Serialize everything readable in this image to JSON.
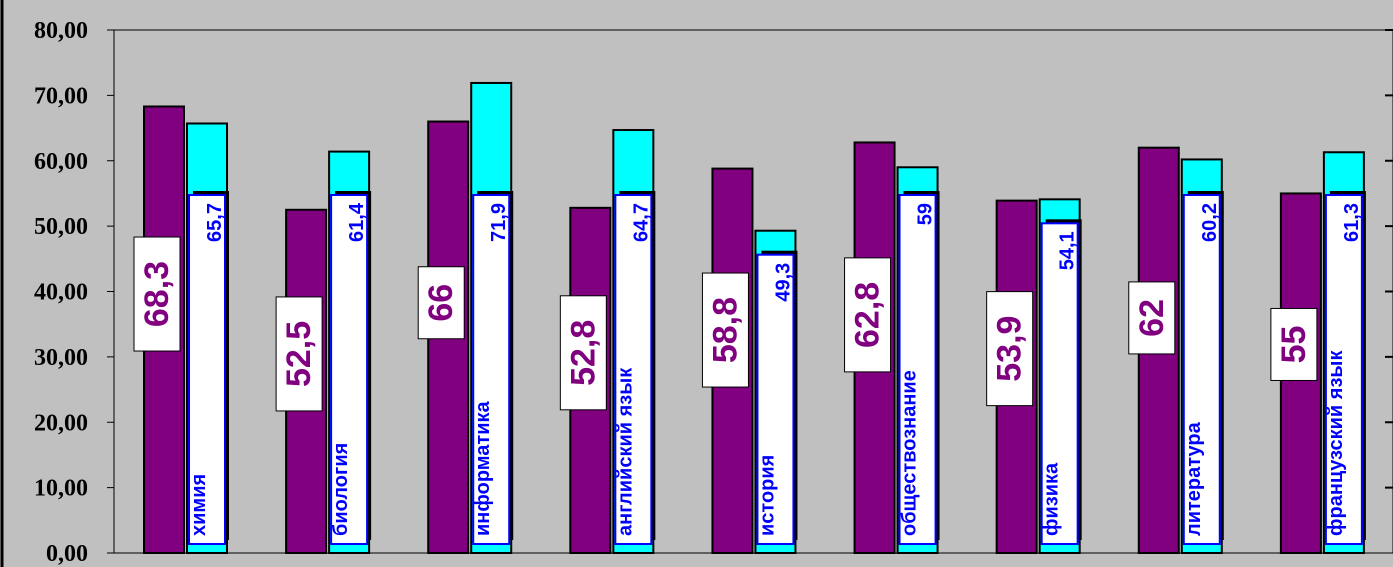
{
  "chart_data": {
    "type": "bar",
    "categories": [
      "химия",
      "биология",
      "информатика",
      "английский язык",
      "история",
      "обществознание",
      "физика",
      "литература",
      "французский язык"
    ],
    "series": [
      {
        "values": [
          68.3,
          52.5,
          66,
          52.8,
          58.8,
          62.8,
          53.9,
          62,
          55
        ],
        "labels": [
          "68,3",
          "52,5",
          "66",
          "52,8",
          "58,8",
          "62,8",
          "53,9",
          "62",
          "55"
        ]
      },
      {
        "values": [
          65.7,
          61.4,
          71.9,
          64.7,
          49.3,
          59,
          54.1,
          60.2,
          61.3
        ],
        "labels": [
          "65,7",
          "61,4",
          "71,9",
          "64,7",
          "49,3",
          "59",
          "54,1",
          "60,2",
          "61,3"
        ]
      }
    ],
    "y_ticks": [
      "0,00",
      "10,00",
      "20,00",
      "30,00",
      "40,00",
      "50,00",
      "60,00",
      "70,00",
      "80,00"
    ],
    "ylim": [
      0,
      80
    ],
    "grid": false,
    "title": "",
    "xlabel": "",
    "ylabel": ""
  },
  "colors": {
    "background": "#c0c0c0",
    "series1": "#800080",
    "series2": "#00ffff",
    "label1_text": "#800080",
    "label2_text": "#0000ff",
    "label_box": "#ffffff"
  }
}
